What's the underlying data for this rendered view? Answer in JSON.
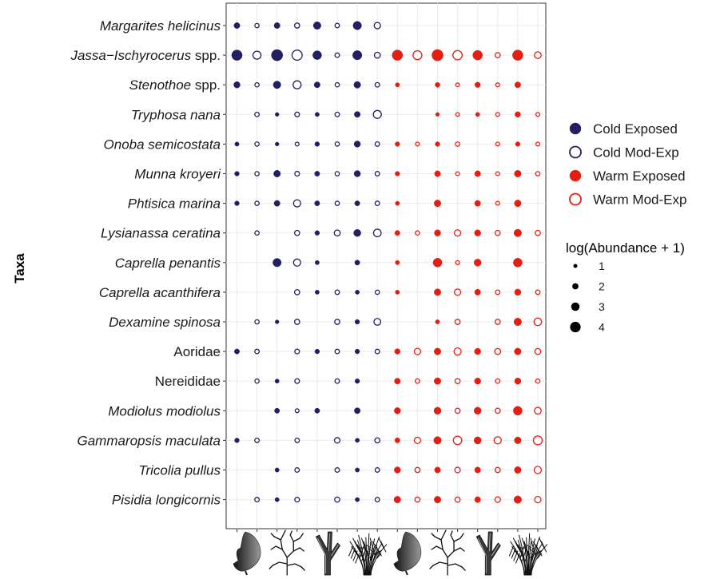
{
  "chart_data": {
    "type": "scatter",
    "ylabel": "Taxa",
    "xlabel": "",
    "grid": true,
    "legend_placement": "right",
    "taxa": [
      {
        "label": "Margarites helicinus",
        "italic": "Margarites helicinus",
        "plain": ""
      },
      {
        "label": "Jassa−Ischyrocerus spp.",
        "italic": "Jassa−Ischyrocerus",
        "plain": " spp."
      },
      {
        "label": "Stenothoe spp.",
        "italic": "Stenothoe",
        "plain": " spp."
      },
      {
        "label": "Tryphosa nana",
        "italic": "Tryphosa nana",
        "plain": ""
      },
      {
        "label": "Onoba semicostata",
        "italic": "Onoba semicostata",
        "plain": ""
      },
      {
        "label": "Munna kroyeri",
        "italic": "Munna kroyeri",
        "plain": ""
      },
      {
        "label": "Phtisica marina",
        "italic": "Phtisica marina",
        "plain": ""
      },
      {
        "label": "Lysianassa ceratina",
        "italic": "Lysianassa ceratina",
        "plain": ""
      },
      {
        "label": "Caprella penantis",
        "italic": "Caprella penantis",
        "plain": ""
      },
      {
        "label": "Caprella acanthifera",
        "italic": "Caprella acanthifera",
        "plain": ""
      },
      {
        "label": "Dexamine spinosa",
        "italic": "Dexamine spinosa",
        "plain": ""
      },
      {
        "label": "Aoridae",
        "italic": "",
        "plain": "Aoridae"
      },
      {
        "label": "Nereididae",
        "italic": "",
        "plain": "Nereididae"
      },
      {
        "label": "Modiolus modiolus",
        "italic": "Modiolus modiolus",
        "plain": ""
      },
      {
        "label": "Gammaropsis maculata",
        "italic": "Gammaropsis maculata",
        "plain": ""
      },
      {
        "label": "Tricolia pullus",
        "italic": "Tricolia pullus",
        "plain": ""
      },
      {
        "label": "Pisidia longicornis",
        "italic": "Pisidia longicornis",
        "plain": ""
      }
    ],
    "columns": [
      {
        "habitat": "kelp",
        "group": "Cold Exposed"
      },
      {
        "habitat": "kelp",
        "group": "Cold Mod-Exp"
      },
      {
        "habitat": "bushy-red",
        "group": "Cold Exposed"
      },
      {
        "habitat": "bushy-red",
        "group": "Cold Mod-Exp"
      },
      {
        "habitat": "branching",
        "group": "Cold Exposed"
      },
      {
        "habitat": "branching",
        "group": "Cold Mod-Exp"
      },
      {
        "habitat": "filamentous",
        "group": "Cold Exposed"
      },
      {
        "habitat": "filamentous",
        "group": "Cold Mod-Exp"
      },
      {
        "habitat": "kelp",
        "group": "Warm Exposed"
      },
      {
        "habitat": "kelp",
        "group": "Warm Mod-Exp"
      },
      {
        "habitat": "bushy-red",
        "group": "Warm Exposed"
      },
      {
        "habitat": "bushy-red",
        "group": "Warm Mod-Exp"
      },
      {
        "habitat": "branching",
        "group": "Warm Exposed"
      },
      {
        "habitat": "branching",
        "group": "Warm Mod-Exp"
      },
      {
        "habitat": "filamentous",
        "group": "Warm Exposed"
      },
      {
        "habitat": "filamentous",
        "group": "Warm Mod-Exp"
      }
    ],
    "values": [
      [
        2.0,
        1.2,
        2.0,
        1.6,
        2.8,
        1.3,
        3.2,
        2.2,
        0,
        0,
        0,
        0,
        0,
        0,
        0,
        0
      ],
      [
        4.2,
        3.0,
        4.6,
        4.0,
        3.4,
        1.3,
        3.6,
        2.0,
        4.2,
        3.4,
        4.6,
        3.6,
        3.8,
        1.6,
        4.2,
        2.4
      ],
      [
        2.2,
        1.2,
        2.8,
        3.0,
        2.0,
        1.2,
        2.4,
        1.3,
        1.2,
        0,
        1.5,
        0.9,
        1.8,
        1.0,
        2.0,
        0
      ],
      [
        0,
        1.3,
        1.0,
        1.4,
        1.2,
        1.3,
        2.0,
        3.0,
        0,
        0,
        1.0,
        0.9,
        1.2,
        1.0,
        1.8,
        1.0
      ],
      [
        1.2,
        1.2,
        1.0,
        1.0,
        1.4,
        1.2,
        2.2,
        1.3,
        1.4,
        1.0,
        1.4,
        1.2,
        0,
        1.0,
        1.4,
        1.0
      ],
      [
        1.4,
        1.2,
        2.4,
        1.4,
        1.6,
        1.2,
        2.2,
        1.3,
        1.4,
        0,
        2.0,
        1.0,
        2.0,
        1.0,
        2.4,
        1.2
      ],
      [
        1.4,
        1.2,
        2.0,
        2.6,
        1.6,
        1.2,
        1.6,
        1.3,
        1.2,
        0,
        2.4,
        0,
        2.0,
        1.0,
        2.4,
        0
      ],
      [
        0,
        1.2,
        0,
        1.6,
        1.4,
        2.0,
        2.6,
        2.8,
        1.6,
        1.2,
        2.2,
        2.2,
        2.2,
        1.6,
        2.8,
        1.6
      ],
      [
        0,
        0,
        3.2,
        2.6,
        1.2,
        0,
        1.6,
        0,
        1.2,
        0,
        3.4,
        1.0,
        2.6,
        0,
        3.4,
        0
      ],
      [
        0,
        0,
        0,
        1.6,
        1.2,
        1.3,
        1.2,
        1.2,
        1.2,
        0,
        2.4,
        2.2,
        2.0,
        1.3,
        2.2,
        1.3
      ],
      [
        0,
        1.2,
        1.0,
        1.6,
        0,
        1.6,
        1.4,
        2.4,
        0,
        0,
        1.2,
        1.6,
        0,
        1.6,
        2.8,
        2.8
      ],
      [
        1.6,
        1.3,
        0,
        1.4,
        1.4,
        1.3,
        1.4,
        1.3,
        1.8,
        2.2,
        2.4,
        2.6,
        2.2,
        2.0,
        2.4,
        2.0
      ],
      [
        0,
        1.2,
        1.2,
        1.4,
        0,
        1.3,
        1.4,
        0,
        2.0,
        1.3,
        2.4,
        1.6,
        2.2,
        1.3,
        2.2,
        1.2
      ],
      [
        0,
        0,
        1.6,
        1.0,
        1.6,
        0,
        2.0,
        0,
        2.2,
        0,
        2.6,
        1.6,
        2.6,
        1.6,
        3.4,
        2.4
      ],
      [
        1.4,
        1.3,
        0,
        1.3,
        0,
        1.8,
        1.2,
        1.6,
        1.6,
        2.2,
        2.8,
        3.2,
        2.6,
        2.6,
        2.4,
        3.4
      ],
      [
        0,
        0,
        1.2,
        1.3,
        0,
        1.3,
        1.2,
        1.3,
        2.2,
        1.6,
        2.0,
        1.8,
        2.0,
        1.6,
        2.4,
        2.6
      ],
      [
        0,
        1.3,
        1.2,
        1.4,
        0,
        1.6,
        1.2,
        1.3,
        2.4,
        1.6,
        2.4,
        1.6,
        2.0,
        1.8,
        2.8,
        2.2
      ]
    ],
    "groups": [
      {
        "name": "Cold Exposed",
        "color": "#232062",
        "filled": true
      },
      {
        "name": "Cold Mod-Exp",
        "color": "#232062",
        "filled": false
      },
      {
        "name": "Warm Exposed",
        "color": "#e41e12",
        "filled": true
      },
      {
        "name": "Warm Mod-Exp",
        "color": "#e41e12",
        "filled": false
      }
    ],
    "size_legend": {
      "title": "log(Abundance + 1)",
      "breaks": [
        1,
        2,
        3,
        4
      ],
      "labels": [
        "1",
        "2",
        "3",
        "4"
      ]
    },
    "habitat_icons": [
      "kelp",
      "bushy-red",
      "branching",
      "filamentous",
      "kelp",
      "bushy-red",
      "branching",
      "filamentous"
    ]
  },
  "colors": {
    "cold": "#232062",
    "warm": "#e41e12",
    "grid": "#ebebeb",
    "panel_border": "#333333"
  }
}
